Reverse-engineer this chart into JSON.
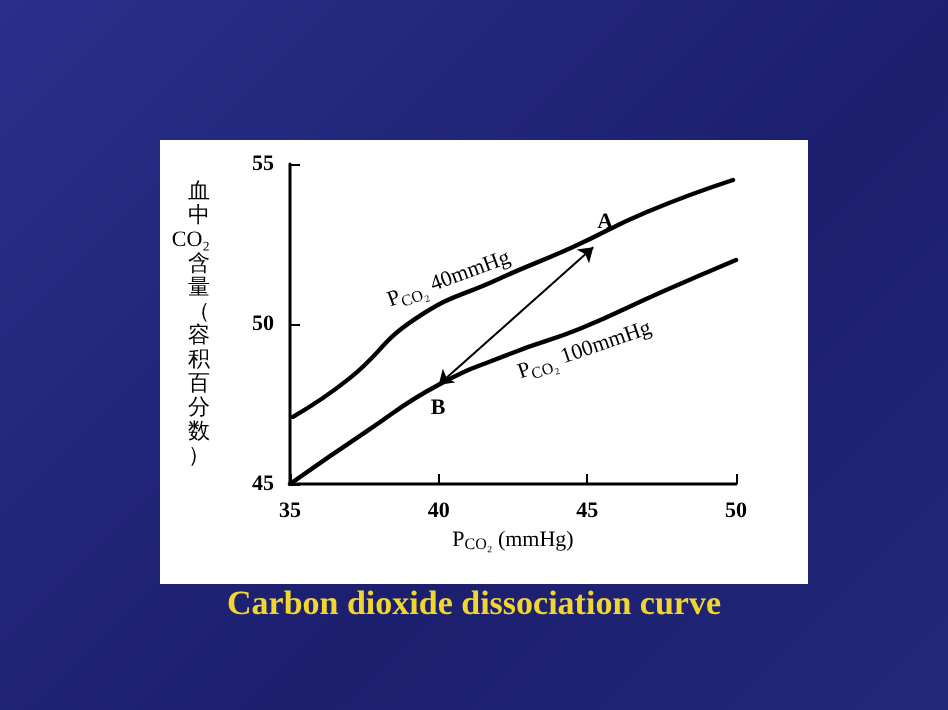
{
  "chart_data": {
    "type": "line",
    "title": "Carbon dioxide dissociation curve",
    "xlabel": "P$_{CO₂}$ (mmHg)",
    "ylabel": "血中CO₂含量（容积百分数）",
    "xlim": [
      35,
      50
    ],
    "xticks": [
      35,
      40,
      45,
      50
    ],
    "ylim": [
      45,
      55
    ],
    "yticks": [
      45,
      50,
      55
    ],
    "grid": false,
    "marker": "none",
    "line_style": "solid",
    "series": [
      {
        "color": "#000000",
        "x": [
          35.1,
          37,
          39.2,
          42,
          44.5,
          47,
          49.9
        ],
        "values": [
          47.1,
          48.3,
          50.15,
          51.4,
          52.4,
          53.5,
          54.5
        ]
      },
      {
        "color": "#000000",
        "x": [
          35,
          37.5,
          40,
          42.5,
          44.75,
          47.5,
          50
        ],
        "values": [
          45,
          46.6,
          48.1,
          49.1,
          49.85,
          51,
          52
        ]
      }
    ],
    "annotations": [
      {
        "text": "P$_{CO₂}$ 40mmHg",
        "x": 40.5,
        "y": 51
      },
      {
        "text": "P$_{CO₂}$ 100mmHg",
        "x": 44.75,
        "y": 49.85
      },
      {
        "text": "A",
        "x": 45.2,
        "y": 52.4
      },
      {
        "text": "B",
        "x": 40,
        "y": 48.1
      }
    ]
  }
}
